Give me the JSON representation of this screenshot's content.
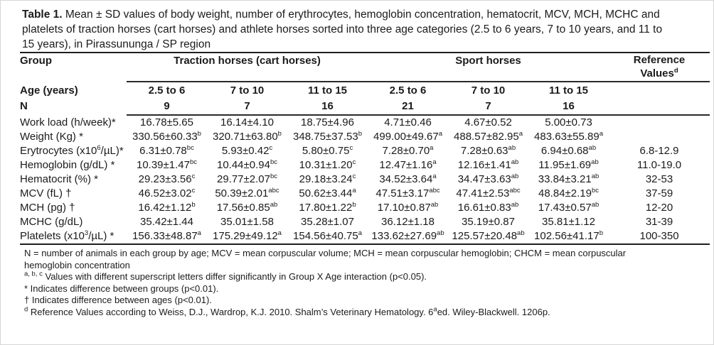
{
  "caption": {
    "bold": "Table 1.",
    "lines": [
      "Mean ± SD values of body weight, number of erythrocytes, hemoglobin concentration, hematocrit, MCV, MCH, MCHC and",
      "platelets of traction horses (cart horses) and athlete horses sorted into three age categories (2.5 to 6 years, 7 to 10 years, and 11 to",
      "15 years), in Pirassununga / SP region"
    ]
  },
  "table": {
    "group_header": {
      "label": "Group",
      "traction": "Traction horses (cart horses)",
      "sport": "Sport horses",
      "reference": [
        "Reference",
        "Values^{d}"
      ]
    },
    "age_row": {
      "label": "Age (years)",
      "values": [
        "2.5 to 6",
        "7 to 10",
        "11 to 15",
        "2.5 to 6",
        "7 to 10",
        "11 to 15"
      ]
    },
    "n_row": {
      "label": "N",
      "values": [
        "9",
        "7",
        "16",
        "21",
        "7",
        "16"
      ]
    },
    "rows": [
      {
        "label": "Work load (h/week)*",
        "values": [
          "16.78±5.65",
          "16.14±4.10",
          "18.75±4.96",
          "4.71±0.46",
          "4.67±0.52",
          "5.00±0.73",
          ""
        ]
      },
      {
        "label": "Weight (Kg) *",
        "values": [
          "330.56±60.33^{b}",
          "320.71±63.80^{b}",
          "348.75±37.53^{b}",
          "499.00±49.67^{a}",
          "488.57±82.95^{a}",
          "483.63±55.89^{a}",
          ""
        ]
      },
      {
        "label": "Erytrocytes (x10^{6}/µL)*",
        "values": [
          "6.31±0.78^{bc}",
          "5.93±0.42^{c}",
          "5.80±0.75^{c}",
          "7.28±0.70^{a}",
          "7.28±0.63^{ab}",
          "6.94±0.68^{ab}",
          "6.8-12.9"
        ]
      },
      {
        "label": "Hemoglobin (g/dL) *",
        "values": [
          "10.39±1.47^{bc}",
          "10.44±0.94^{bc}",
          "10.31±1.20^{c}",
          "12.47±1.16^{a}",
          "12.16±1.41^{ab}",
          "11.95±1.69^{ab}",
          "11.0-19.0"
        ]
      },
      {
        "label": "Hematocrit (%) *",
        "values": [
          "29.23±3.56^{c}",
          "29.77±2.07^{bc}",
          "29.18±3.24^{c}",
          "34.52±3.64^{a}",
          "34.47±3.63^{ab}",
          "33.84±3.21^{ab}",
          "32-53"
        ]
      },
      {
        "label": "MCV (fL) †",
        "values": [
          "46.52±3.02^{c}",
          "50.39±2.01^{abc}",
          "50.62±3.44^{a}",
          "47.51±3.17^{abc}",
          "47.41±2.53^{abc}",
          "48.84±2.19^{bc}",
          "37-59"
        ]
      },
      {
        "label": "MCH (pg) †",
        "values": [
          "16.42±1.12^{b}",
          "17.56±0.85^{ab}",
          "17.80±1.22^{b}",
          "17.10±0.87^{ab}",
          "16.61±0.83^{ab}",
          "17.43±0.57^{ab}",
          "12-20"
        ]
      },
      {
        "label": "MCHC (g/dL)",
        "values": [
          "35.42±1.44",
          "35.01±1.58",
          "35.28±1.07",
          "36.12±1.18",
          "35.19±0.87",
          "35.81±1.12",
          "31-39"
        ]
      },
      {
        "label": "Platelets (x10^{3}/µL) *",
        "values": [
          "156.33±48.87^{a}",
          "175.29±49.12^{a}",
          "154.56±40.75^{a}",
          "133.62±27.69^{ab}",
          "125.57±20.48^{ab}",
          "102.56±41.17^{b}",
          "100-350"
        ]
      }
    ]
  },
  "footnotes": {
    "lines": [
      "N = number of animals in each group by age; MCV = mean corpuscular volume; MCH = mean corpuscular hemoglobin; CHCM = mean corpuscular",
      "hemoglobin concentration",
      "^{a, b, c} Values with different superscript letters differ significantly in Group X Age interaction (p<0.05).",
      "* Indicates difference between groups (p<0.01).",
      "† Indicates difference between ages (p<0.01).",
      "^{d} Reference Values according to Weiss, D.J., Wardrop, K.J. 2010. Shalm’s Veterinary Hematology. 6^{a}ed. Wiley-Blackwell. 1206p."
    ]
  }
}
